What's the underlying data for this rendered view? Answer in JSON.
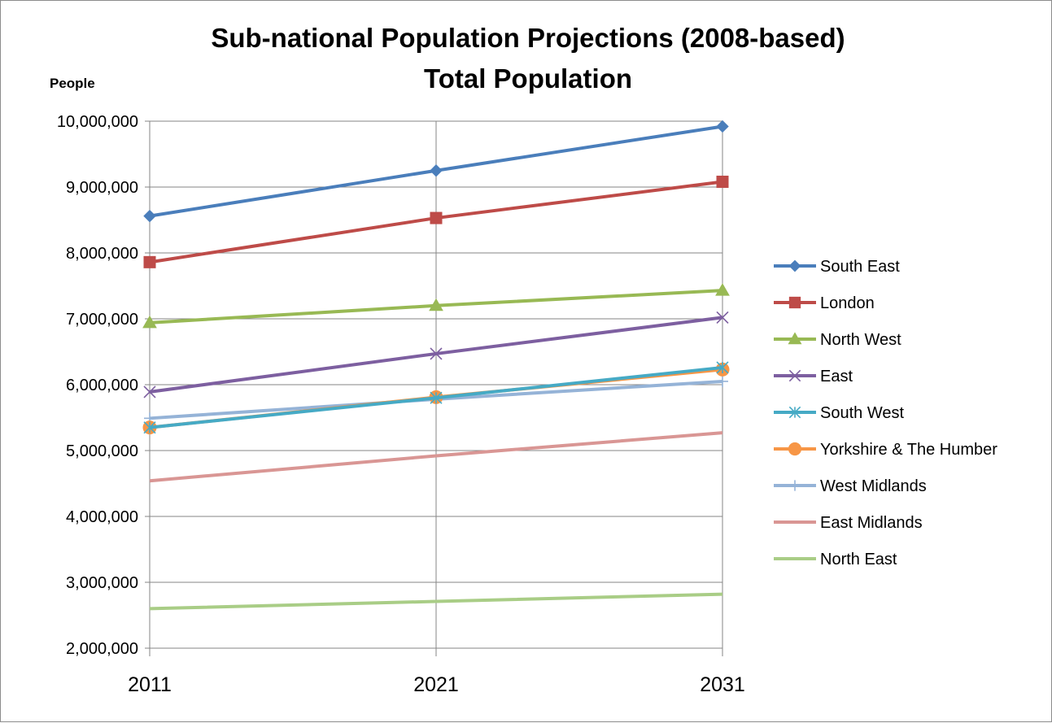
{
  "chart_data": {
    "type": "line",
    "title_lines": [
      "Sub-national Population Projections (2008-based)",
      "Total Population"
    ],
    "ylabel": "People",
    "xlabel": "",
    "categories": [
      "2011",
      "2021",
      "2031"
    ],
    "ylim": [
      2000000,
      10000000
    ],
    "yticks": [
      2000000,
      3000000,
      4000000,
      5000000,
      6000000,
      7000000,
      8000000,
      9000000,
      10000000
    ],
    "ytick_labels": [
      "2,000,000",
      "3,000,000",
      "4,000,000",
      "5,000,000",
      "6,000,000",
      "7,000,000",
      "8,000,000",
      "9,000,000",
      "10,000,000"
    ],
    "grid": "horizontal",
    "legend": "right",
    "series": [
      {
        "name": "South East",
        "values": [
          8560000,
          9250000,
          9920000
        ],
        "color": "#4a7ebb",
        "marker": "diamond"
      },
      {
        "name": "London",
        "values": [
          7860000,
          8530000,
          9080000
        ],
        "color": "#be4b48",
        "marker": "square"
      },
      {
        "name": "North West",
        "values": [
          6940000,
          7200000,
          7430000
        ],
        "color": "#98b954",
        "marker": "triangle"
      },
      {
        "name": "East",
        "values": [
          5890000,
          6470000,
          7020000
        ],
        "color": "#7d5fa0",
        "marker": "x"
      },
      {
        "name": "South West",
        "values": [
          5350000,
          5800000,
          6260000
        ],
        "color": "#46aac5",
        "marker": "star"
      },
      {
        "name": "Yorkshire & The Humber",
        "values": [
          5350000,
          5810000,
          6230000
        ],
        "color": "#f79646",
        "marker": "circle"
      },
      {
        "name": "West Midlands",
        "values": [
          5490000,
          5780000,
          6050000
        ],
        "color": "#95b3d7",
        "marker": "plus"
      },
      {
        "name": "East Midlands",
        "values": [
          4540000,
          4920000,
          5270000
        ],
        "color": "#d99694",
        "marker": "none"
      },
      {
        "name": "North East",
        "values": [
          2600000,
          2710000,
          2820000
        ],
        "color": "#a9cd86",
        "marker": "none"
      }
    ]
  }
}
